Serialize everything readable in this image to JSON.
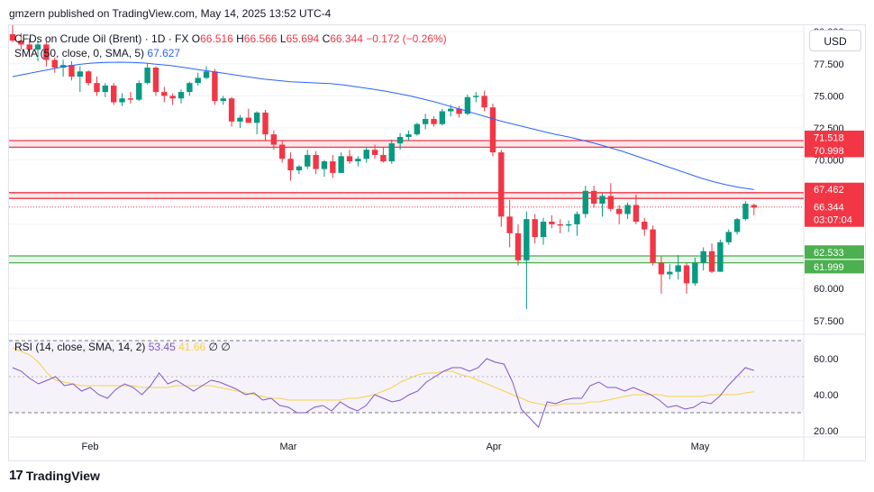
{
  "header": {
    "text": "gmzern published on TradingView.com, May 14, 2025 13:52 UTC-4"
  },
  "legend": {
    "symbol": "CFDs on Crude Oil (Brent) · 1D · FX",
    "open_label": "O",
    "open": "66.516",
    "high_label": "H",
    "high": "66.566",
    "low_label": "L",
    "low": "65.694",
    "close_label": "C",
    "close": "66.344",
    "change": "−0.172 (−0.26%)",
    "sma_label": "SMA (50, close, 0, SMA, 5)",
    "sma_value": "67.627"
  },
  "rsi_legend": {
    "label": "RSI (14, close, SMA, 14, 2)",
    "rsi": "53.45",
    "rsi_sma": "41.66",
    "extra1": "∅",
    "extra2": "∅"
  },
  "currency": "USD",
  "footer": {
    "brand": "TradingView",
    "logo": "17"
  },
  "colors": {
    "up": "#089981",
    "down": "#f23645",
    "sma": "#2962ff",
    "rsi": "#7e57c2",
    "rsi_sma": "#f7d14a",
    "support": "#4caf50",
    "resistance": "#f23645"
  },
  "chart_data": {
    "type": "candlestick",
    "title": "CFDs on Crude Oil (Brent) · 1D · FX",
    "price_axis": {
      "ticks": [
        "80.000",
        "77.500",
        "75.000",
        "72.500",
        "70.000",
        "60.000",
        "57.500"
      ],
      "range": [
        56.5,
        80.5
      ]
    },
    "x_ticks": [
      "Feb",
      "Mar",
      "Apr",
      "May"
    ],
    "candles": [
      {
        "o": 79.8,
        "h": 80.5,
        "l": 79.2,
        "c": 79.3
      },
      {
        "o": 79.3,
        "h": 79.9,
        "l": 78.6,
        "c": 79.0
      },
      {
        "o": 79.0,
        "h": 79.5,
        "l": 78.0,
        "c": 78.6
      },
      {
        "o": 78.6,
        "h": 79.3,
        "l": 77.7,
        "c": 79.0
      },
      {
        "o": 79.0,
        "h": 79.2,
        "l": 77.3,
        "c": 77.8
      },
      {
        "o": 77.8,
        "h": 78.0,
        "l": 76.8,
        "c": 77.2
      },
      {
        "o": 77.2,
        "h": 77.8,
        "l": 76.5,
        "c": 77.4
      },
      {
        "o": 77.4,
        "h": 77.7,
        "l": 76.2,
        "c": 76.5
      },
      {
        "o": 76.5,
        "h": 77.3,
        "l": 75.3,
        "c": 76.9
      },
      {
        "o": 76.9,
        "h": 77.0,
        "l": 75.8,
        "c": 76.0
      },
      {
        "o": 76.0,
        "h": 76.5,
        "l": 75.0,
        "c": 75.3
      },
      {
        "o": 75.3,
        "h": 76.0,
        "l": 74.9,
        "c": 75.8
      },
      {
        "o": 75.8,
        "h": 76.0,
        "l": 74.3,
        "c": 74.5
      },
      {
        "o": 74.5,
        "h": 75.2,
        "l": 74.2,
        "c": 74.8
      },
      {
        "o": 74.8,
        "h": 75.3,
        "l": 74.4,
        "c": 74.7
      },
      {
        "o": 74.7,
        "h": 76.2,
        "l": 74.6,
        "c": 76.0
      },
      {
        "o": 76.0,
        "h": 77.5,
        "l": 75.9,
        "c": 77.2
      },
      {
        "o": 77.2,
        "h": 77.3,
        "l": 75.0,
        "c": 75.3
      },
      {
        "o": 75.3,
        "h": 75.7,
        "l": 74.5,
        "c": 75.0
      },
      {
        "o": 75.0,
        "h": 75.2,
        "l": 74.3,
        "c": 74.8
      },
      {
        "o": 74.8,
        "h": 75.5,
        "l": 74.4,
        "c": 75.3
      },
      {
        "o": 75.3,
        "h": 76.1,
        "l": 75.0,
        "c": 76.0
      },
      {
        "o": 76.0,
        "h": 76.8,
        "l": 75.8,
        "c": 76.4
      },
      {
        "o": 76.4,
        "h": 77.3,
        "l": 76.3,
        "c": 76.9
      },
      {
        "o": 76.9,
        "h": 77.1,
        "l": 74.3,
        "c": 74.6
      },
      {
        "o": 74.6,
        "h": 75.0,
        "l": 74.3,
        "c": 74.8
      },
      {
        "o": 74.8,
        "h": 74.9,
        "l": 72.6,
        "c": 73.0
      },
      {
        "o": 73.0,
        "h": 73.5,
        "l": 72.5,
        "c": 73.3
      },
      {
        "o": 73.3,
        "h": 74.0,
        "l": 72.9,
        "c": 72.9
      },
      {
        "o": 72.9,
        "h": 73.8,
        "l": 72.0,
        "c": 73.7
      },
      {
        "o": 73.7,
        "h": 73.9,
        "l": 71.5,
        "c": 72.0
      },
      {
        "o": 72.0,
        "h": 72.3,
        "l": 70.8,
        "c": 71.2
      },
      {
        "o": 71.2,
        "h": 71.5,
        "l": 69.8,
        "c": 70.1
      },
      {
        "o": 70.1,
        "h": 70.6,
        "l": 68.4,
        "c": 69.2
      },
      {
        "o": 69.2,
        "h": 69.6,
        "l": 68.9,
        "c": 69.5
      },
      {
        "o": 69.5,
        "h": 70.8,
        "l": 69.3,
        "c": 70.4
      },
      {
        "o": 70.4,
        "h": 70.7,
        "l": 68.9,
        "c": 69.3
      },
      {
        "o": 69.3,
        "h": 70.0,
        "l": 68.7,
        "c": 69.9
      },
      {
        "o": 69.9,
        "h": 70.4,
        "l": 68.6,
        "c": 69.0
      },
      {
        "o": 69.0,
        "h": 70.6,
        "l": 69.0,
        "c": 70.3
      },
      {
        "o": 70.3,
        "h": 70.8,
        "l": 69.7,
        "c": 69.9
      },
      {
        "o": 69.9,
        "h": 70.3,
        "l": 69.5,
        "c": 70.1
      },
      {
        "o": 70.1,
        "h": 71.0,
        "l": 69.8,
        "c": 70.8
      },
      {
        "o": 70.8,
        "h": 71.2,
        "l": 70.1,
        "c": 70.4
      },
      {
        "o": 70.4,
        "h": 71.0,
        "l": 69.8,
        "c": 69.9
      },
      {
        "o": 69.9,
        "h": 71.6,
        "l": 69.7,
        "c": 71.3
      },
      {
        "o": 71.3,
        "h": 72.1,
        "l": 70.8,
        "c": 71.8
      },
      {
        "o": 71.8,
        "h": 72.3,
        "l": 71.5,
        "c": 72.0
      },
      {
        "o": 72.0,
        "h": 72.9,
        "l": 71.9,
        "c": 72.8
      },
      {
        "o": 72.8,
        "h": 73.6,
        "l": 72.4,
        "c": 73.2
      },
      {
        "o": 73.2,
        "h": 73.4,
        "l": 72.6,
        "c": 72.8
      },
      {
        "o": 72.8,
        "h": 74.0,
        "l": 72.7,
        "c": 73.8
      },
      {
        "o": 73.8,
        "h": 74.3,
        "l": 73.4,
        "c": 74.0
      },
      {
        "o": 74.0,
        "h": 74.2,
        "l": 73.3,
        "c": 73.6
      },
      {
        "o": 73.6,
        "h": 75.1,
        "l": 73.5,
        "c": 74.9
      },
      {
        "o": 74.9,
        "h": 75.3,
        "l": 74.5,
        "c": 75.0
      },
      {
        "o": 75.0,
        "h": 75.4,
        "l": 73.8,
        "c": 74.1
      },
      {
        "o": 74.1,
        "h": 74.4,
        "l": 70.3,
        "c": 70.6
      },
      {
        "o": 70.6,
        "h": 70.8,
        "l": 64.8,
        "c": 65.6
      },
      {
        "o": 65.6,
        "h": 66.9,
        "l": 63.2,
        "c": 64.3
      },
      {
        "o": 64.3,
        "h": 65.0,
        "l": 61.8,
        "c": 62.2
      },
      {
        "o": 62.2,
        "h": 66.0,
        "l": 58.4,
        "c": 65.4
      },
      {
        "o": 65.4,
        "h": 65.8,
        "l": 63.5,
        "c": 64.0
      },
      {
        "o": 64.0,
        "h": 65.5,
        "l": 63.4,
        "c": 65.2
      },
      {
        "o": 65.2,
        "h": 65.7,
        "l": 64.7,
        "c": 65.0
      },
      {
        "o": 65.0,
        "h": 65.4,
        "l": 64.3,
        "c": 64.9
      },
      {
        "o": 64.9,
        "h": 65.3,
        "l": 64.4,
        "c": 65.0
      },
      {
        "o": 65.0,
        "h": 66.0,
        "l": 64.1,
        "c": 65.8
      },
      {
        "o": 65.8,
        "h": 68.0,
        "l": 65.5,
        "c": 67.6
      },
      {
        "o": 67.6,
        "h": 68.0,
        "l": 66.3,
        "c": 66.6
      },
      {
        "o": 66.6,
        "h": 67.4,
        "l": 65.6,
        "c": 67.2
      },
      {
        "o": 67.2,
        "h": 68.2,
        "l": 66.0,
        "c": 66.2
      },
      {
        "o": 66.2,
        "h": 66.5,
        "l": 65.0,
        "c": 65.8
      },
      {
        "o": 65.8,
        "h": 66.7,
        "l": 65.4,
        "c": 66.5
      },
      {
        "o": 66.5,
        "h": 67.3,
        "l": 65.0,
        "c": 65.2
      },
      {
        "o": 65.2,
        "h": 65.5,
        "l": 64.1,
        "c": 64.6
      },
      {
        "o": 64.6,
        "h": 64.9,
        "l": 61.8,
        "c": 62.0
      },
      {
        "o": 62.0,
        "h": 62.5,
        "l": 59.6,
        "c": 61.1
      },
      {
        "o": 61.1,
        "h": 61.9,
        "l": 60.7,
        "c": 61.3
      },
      {
        "o": 61.3,
        "h": 62.6,
        "l": 60.7,
        "c": 61.8
      },
      {
        "o": 61.8,
        "h": 62.0,
        "l": 59.6,
        "c": 60.4
      },
      {
        "o": 60.4,
        "h": 62.4,
        "l": 60.2,
        "c": 62.0
      },
      {
        "o": 62.0,
        "h": 63.2,
        "l": 61.4,
        "c": 62.9
      },
      {
        "o": 62.9,
        "h": 63.5,
        "l": 61.2,
        "c": 61.3
      },
      {
        "o": 61.3,
        "h": 63.8,
        "l": 61.3,
        "c": 63.6
      },
      {
        "o": 63.6,
        "h": 64.6,
        "l": 63.4,
        "c": 64.4
      },
      {
        "o": 64.4,
        "h": 65.5,
        "l": 64.2,
        "c": 65.4
      },
      {
        "o": 65.4,
        "h": 66.8,
        "l": 65.3,
        "c": 66.6
      },
      {
        "o": 66.5,
        "h": 66.6,
        "l": 65.7,
        "c": 66.3
      }
    ],
    "sma50": [
      76.5,
      76.7,
      76.9,
      77.1,
      77.3,
      77.45,
      77.55,
      77.6,
      77.62,
      77.6,
      77.55,
      77.45,
      77.35,
      77.2,
      77.05,
      76.9,
      76.75,
      76.6,
      76.45,
      76.3,
      76.2,
      76.1,
      76.05,
      76.0,
      75.95,
      75.85,
      75.7,
      75.55,
      75.4,
      75.2,
      75.0,
      74.75,
      74.5,
      74.2,
      73.9,
      73.6,
      73.3,
      73.0,
      72.75,
      72.5,
      72.25,
      72.0,
      71.8,
      71.55,
      71.3,
      71.0,
      70.7,
      70.35,
      70.0,
      69.65,
      69.3,
      68.95,
      68.6,
      68.3,
      68.05,
      67.85,
      67.7
    ],
    "levels": [
      {
        "name": "resistance-71518",
        "value": "71.518",
        "y": 71.518,
        "color": "#f23645"
      },
      {
        "name": "resistance-70998",
        "value": "70.998",
        "y": 70.998,
        "color": "#f23645"
      },
      {
        "name": "resistance-67462",
        "value": "67.462",
        "y": 67.462,
        "color": "#f23645"
      },
      {
        "name": "resistance-67012",
        "value": "67.012",
        "y": 67.012,
        "color": "#f23645"
      },
      {
        "name": "support-62533",
        "value": "62.533",
        "y": 62.533,
        "color": "#4caf50"
      },
      {
        "name": "support-61999",
        "value": "61.999",
        "y": 61.999,
        "color": "#4caf50"
      }
    ],
    "last_price": {
      "value": "66.344",
      "countdown": "03:07:04",
      "y": 66.344
    },
    "rsi": {
      "ticks": [
        "60.00",
        "40.00",
        "20.00"
      ],
      "range": [
        17,
        73
      ],
      "upper": 70,
      "lower": 30,
      "middle": 50,
      "values": [
        55,
        53,
        49,
        46,
        48,
        50,
        45,
        46,
        42,
        44,
        40,
        38,
        43,
        46,
        44,
        40,
        45,
        52,
        46,
        48,
        45,
        42,
        45,
        48,
        47,
        45,
        43,
        40,
        41,
        37,
        38,
        34,
        33,
        30,
        30,
        33,
        34,
        31,
        36,
        33,
        31,
        34,
        40,
        38,
        36,
        37,
        40,
        42,
        47,
        50,
        53,
        55,
        55,
        53,
        55,
        60,
        58,
        57,
        47,
        32,
        27,
        22,
        36,
        35,
        37,
        38,
        38,
        45,
        47,
        44,
        44,
        42,
        44,
        42,
        40,
        37,
        33,
        34,
        32,
        33,
        36,
        35,
        39,
        45,
        50,
        55,
        53.45
      ],
      "sma": [
        66,
        64,
        62,
        58,
        52,
        48,
        47,
        46,
        45,
        45,
        45,
        45,
        45,
        45,
        45,
        44,
        44,
        44,
        44,
        45,
        45,
        45,
        45,
        45,
        44,
        43,
        42,
        41,
        40,
        39,
        38,
        38,
        37,
        37,
        37,
        37,
        37,
        37,
        37,
        38,
        38,
        39,
        40,
        42,
        44,
        47,
        49,
        51,
        52,
        52,
        53,
        53,
        51,
        50,
        48,
        46,
        44,
        42,
        40,
        38,
        36,
        35,
        34,
        34,
        35,
        35,
        35,
        36,
        36,
        37,
        38,
        39,
        40,
        40,
        40,
        40,
        39,
        39,
        39,
        39,
        39,
        40,
        40,
        40,
        40,
        41,
        41.66
      ]
    }
  }
}
